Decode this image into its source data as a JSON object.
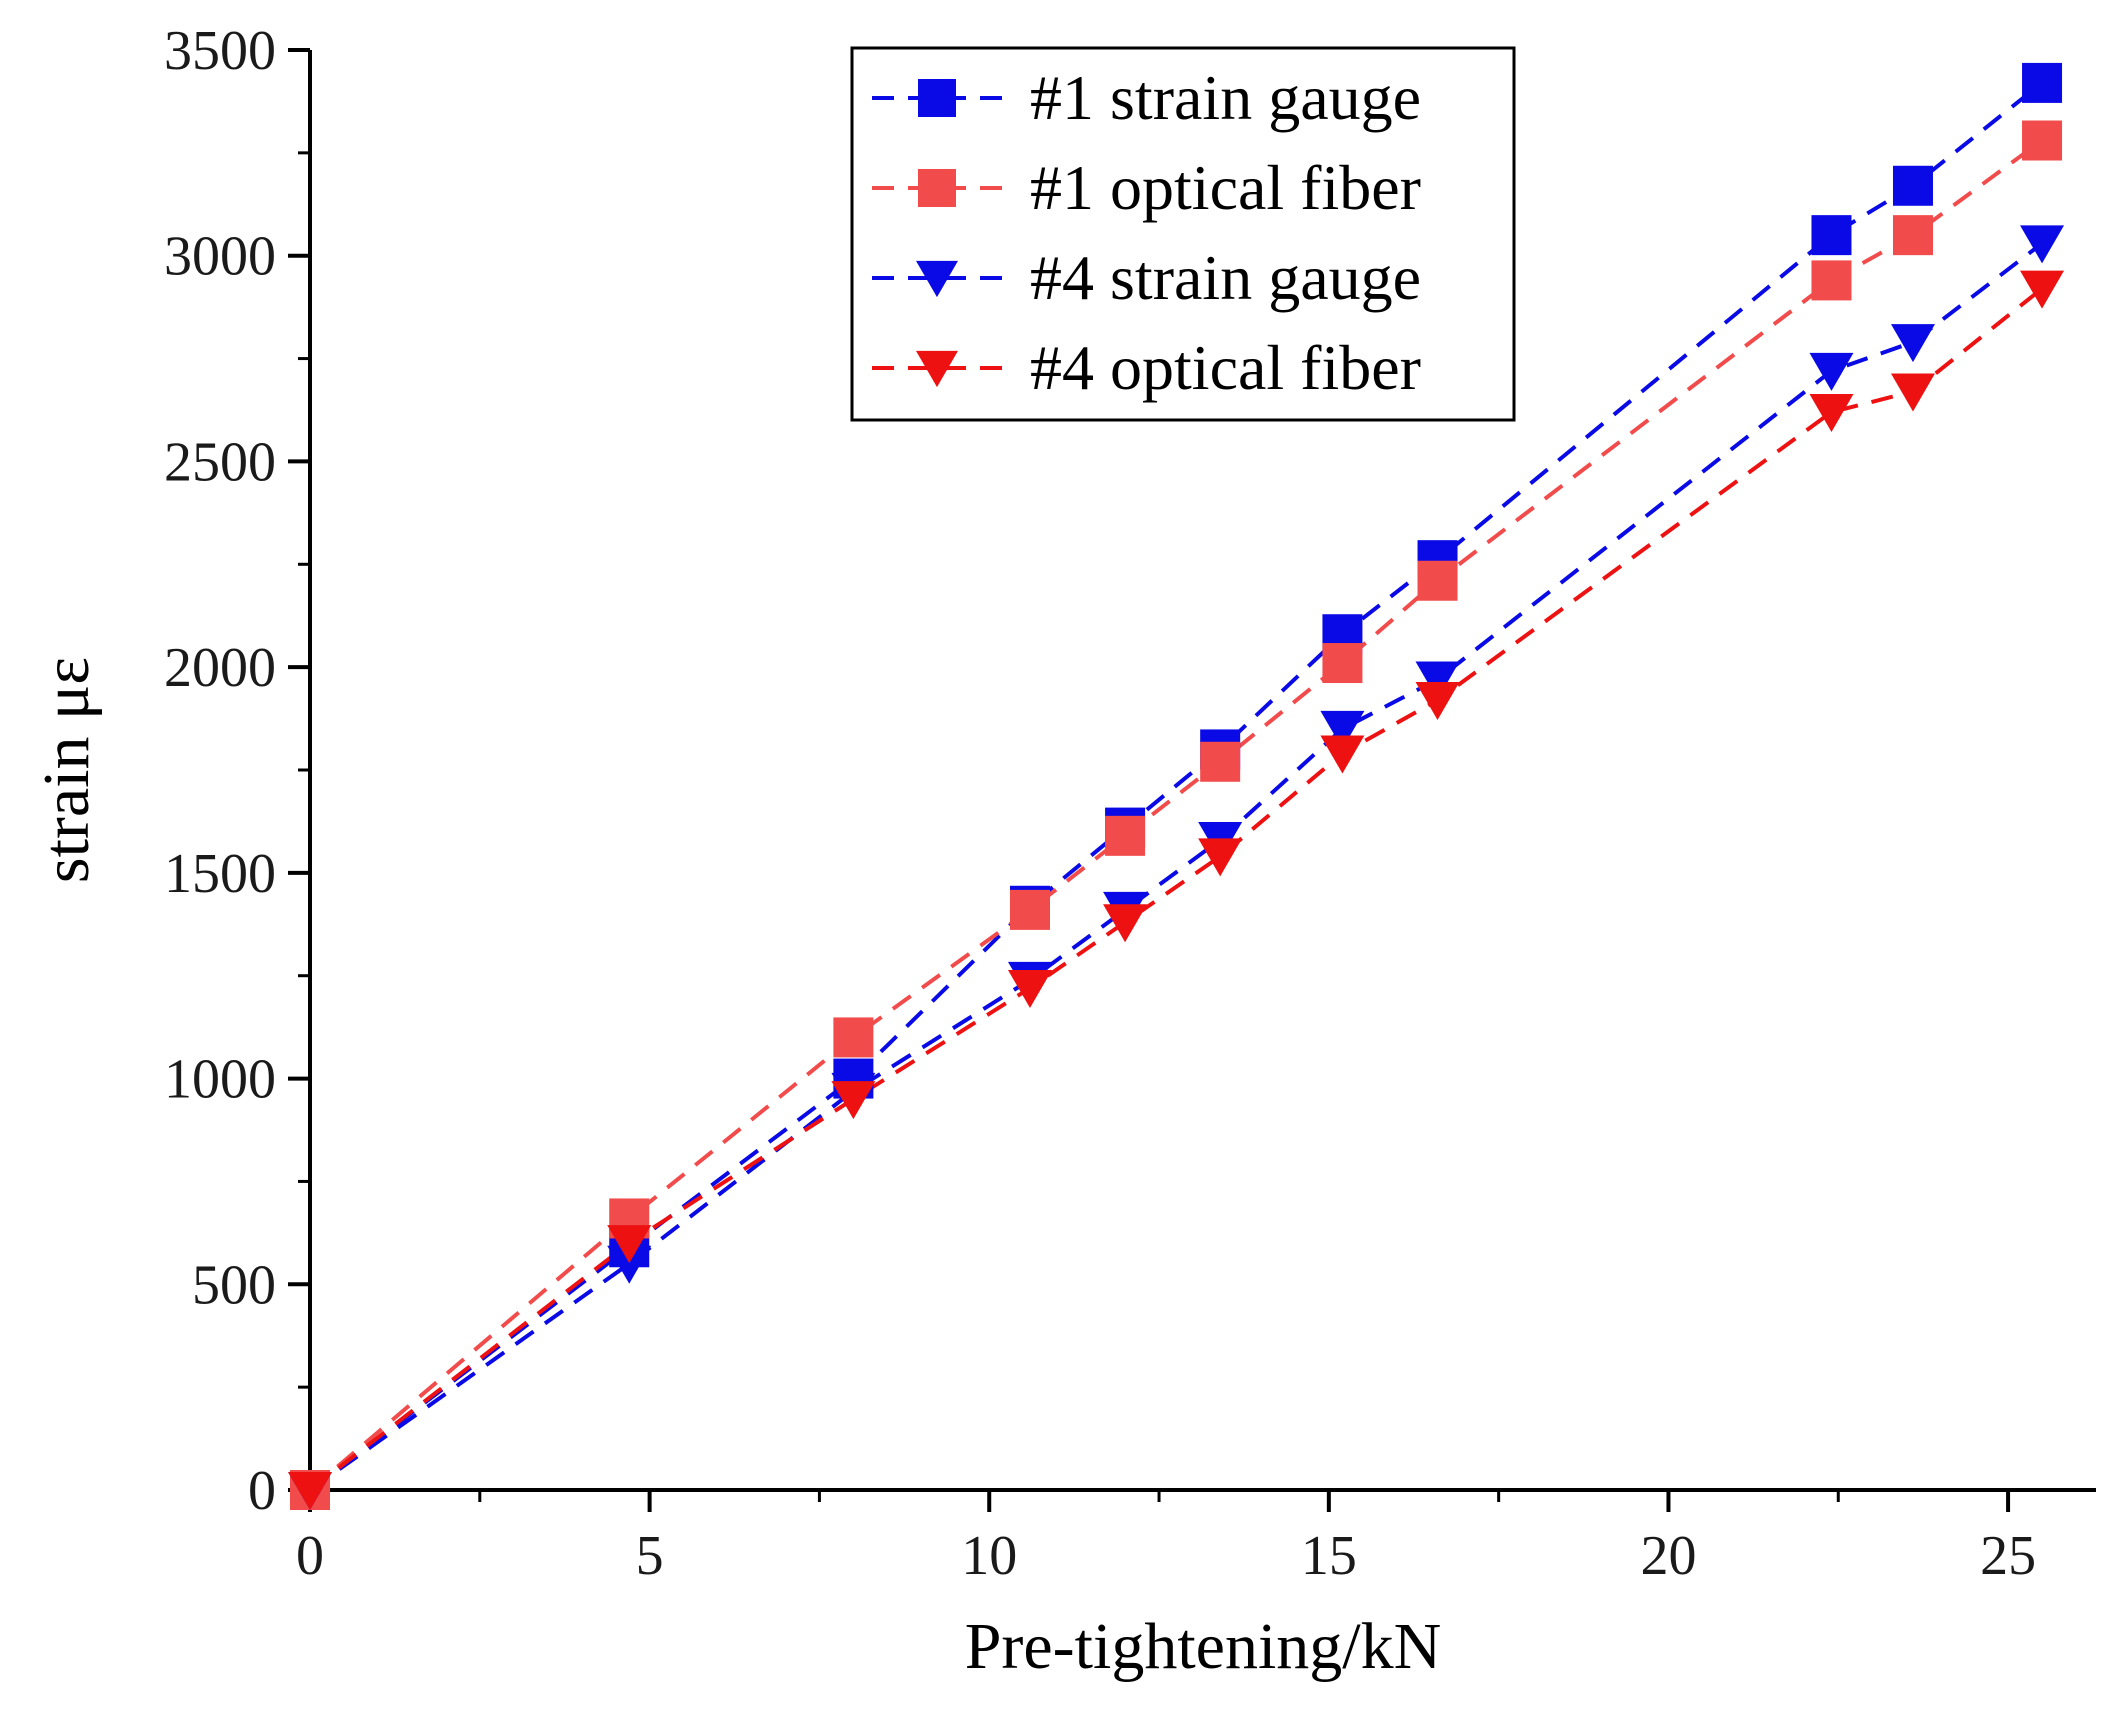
{
  "chart_data": {
    "type": "line",
    "title": "",
    "xlabel": "Pre-tightening/kN",
    "ylabel": "strain με",
    "xlim": [
      0,
      26
    ],
    "ylim": [
      0,
      3500
    ],
    "xticks": [
      0,
      5,
      10,
      15,
      20,
      25
    ],
    "yticks": [
      0,
      500,
      1000,
      1500,
      2000,
      2500,
      3000,
      3500
    ],
    "grid": false,
    "legend_position": "top-center",
    "line_style": "dashed",
    "series": [
      {
        "name": "#1 strain gauge",
        "marker": "square",
        "color": "#0a0ae6",
        "x": [
          0,
          4.7,
          8.0,
          10.6,
          12.0,
          13.4,
          15.2,
          16.6,
          22.4,
          23.6,
          25.5
        ],
        "y": [
          0,
          590,
          1000,
          1420,
          1610,
          1800,
          2080,
          2260,
          3050,
          3170,
          3420
        ]
      },
      {
        "name": "#1 optical fiber",
        "marker": "square",
        "color": "#f24b4b",
        "x": [
          0,
          4.7,
          8.0,
          10.6,
          12.0,
          13.4,
          15.2,
          16.6,
          22.4,
          23.6,
          25.5
        ],
        "y": [
          0,
          660,
          1100,
          1410,
          1590,
          1770,
          2010,
          2210,
          2940,
          3050,
          3280
        ]
      },
      {
        "name": "#4 strain gauge",
        "marker": "triangle-down",
        "color": "#0a0ae6",
        "x": [
          0,
          4.7,
          8.0,
          10.6,
          12.0,
          13.4,
          15.2,
          16.6,
          22.4,
          23.6,
          25.5
        ],
        "y": [
          0,
          550,
          970,
          1240,
          1410,
          1580,
          1850,
          1970,
          2720,
          2790,
          3030
        ]
      },
      {
        "name": "#4 optical fiber",
        "marker": "triangle-down",
        "color": "#ee1111",
        "x": [
          0,
          4.7,
          8.0,
          10.6,
          12.0,
          13.4,
          15.2,
          16.6,
          22.4,
          23.6,
          25.5
        ],
        "y": [
          0,
          600,
          950,
          1220,
          1380,
          1540,
          1790,
          1920,
          2620,
          2670,
          2920
        ]
      }
    ]
  }
}
